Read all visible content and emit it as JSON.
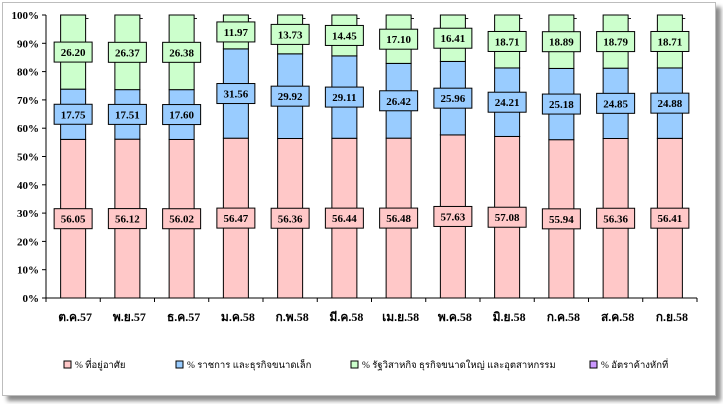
{
  "chart_data": {
    "type": "stacked-bar-100",
    "title": "",
    "xlabel": "",
    "ylabel": "",
    "ylim": [
      0,
      100
    ],
    "yticks": [
      "0%",
      "10%",
      "20%",
      "30%",
      "40%",
      "50%",
      "60%",
      "70%",
      "80%",
      "90%",
      "100%"
    ],
    "grid": false,
    "legend_position": "bottom",
    "categories": [
      "ต.ค.57",
      "พ.ย.57",
      "ธ.ค.57",
      "ม.ค.58",
      "ก.พ.58",
      "มี.ค.58",
      "เม.ย.58",
      "พ.ค.58",
      "มิ.ย.58",
      "ก.ค.58",
      "ส.ค.58",
      "ก.ย.58"
    ],
    "series": [
      {
        "name": "% ที่อยู่อาศัย",
        "color": "#ffc8c8",
        "values": [
          56.05,
          56.12,
          56.02,
          56.47,
          56.36,
          56.44,
          56.48,
          57.63,
          57.08,
          55.94,
          56.36,
          56.41
        ],
        "labels": [
          "56.05",
          "56.12",
          "56.02",
          "56.47",
          "56.36",
          "56.44",
          "56.48",
          "57.63",
          "57.08",
          "55.94",
          "56.36",
          "56.41"
        ]
      },
      {
        "name": "% ราชการ และธุรกิจขนาดเล็ก",
        "color": "#99ccff",
        "values": [
          17.75,
          17.51,
          17.6,
          31.56,
          29.92,
          29.11,
          26.42,
          25.96,
          24.21,
          25.18,
          24.85,
          24.88
        ],
        "labels": [
          "17.75",
          "17.51",
          "17.60",
          "31.56",
          "29.92",
          "29.11",
          "26.42",
          "25.96",
          "24.21",
          "25.18",
          "24.85",
          "24.88"
        ]
      },
      {
        "name": "% รัฐวิสาหกิจ ธุรกิจขนาดใหญ่ และอุตสาหกรรม",
        "color": "#ccffcc",
        "values": [
          26.2,
          26.37,
          26.38,
          11.97,
          13.73,
          14.45,
          17.1,
          16.41,
          18.71,
          18.89,
          18.79,
          18.71
        ],
        "labels": [
          "26.20",
          "26.37",
          "26.38",
          "11.97",
          "13.73",
          "14.45",
          "17.10",
          "16.41",
          "18.71",
          "18.89",
          "18.79",
          "18.71"
        ]
      },
      {
        "name": "% อัตราค้างหักที่",
        "color": "#cc99ff",
        "values": [
          0,
          0,
          0,
          0,
          0,
          0,
          0,
          0,
          0,
          0,
          0,
          0
        ],
        "labels": [
          "-",
          "-",
          "-",
          "-",
          "-",
          "-",
          "-",
          "-",
          "-",
          "-",
          "-",
          "-"
        ]
      }
    ]
  }
}
